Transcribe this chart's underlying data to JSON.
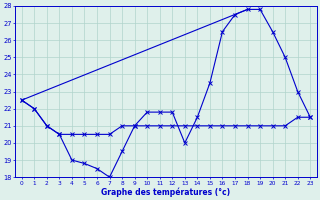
{
  "line1_x": [
    0,
    1,
    2,
    3,
    4,
    5,
    6,
    7,
    8,
    9,
    10,
    11,
    12,
    13,
    14,
    15,
    16,
    17,
    18,
    19,
    20,
    21,
    22,
    23
  ],
  "line1_y": [
    22.5,
    22.0,
    21.0,
    20.5,
    19.0,
    18.8,
    18.5,
    18.0,
    19.5,
    21.0,
    21.8,
    21.8,
    21.8,
    20.0,
    21.5,
    23.5,
    26.5,
    27.5,
    27.8,
    27.8,
    26.5,
    25.0,
    23.0,
    21.5
  ],
  "line2_x": [
    0,
    18
  ],
  "line2_y": [
    22.5,
    27.8
  ],
  "line3_x": [
    0,
    1,
    2,
    3,
    4,
    5,
    6,
    7,
    8,
    9,
    10,
    11,
    12,
    13,
    14,
    15,
    16,
    17,
    18,
    19,
    20,
    21,
    22,
    23
  ],
  "line3_y": [
    22.5,
    22.0,
    21.0,
    20.5,
    20.5,
    20.5,
    20.5,
    20.5,
    21.0,
    21.0,
    21.0,
    21.0,
    21.0,
    21.0,
    21.0,
    21.0,
    21.0,
    21.0,
    21.0,
    21.0,
    21.0,
    21.0,
    21.5,
    21.5
  ],
  "xlabel": "Graphe des températures (°c)",
  "ylim": [
    18,
    28
  ],
  "xlim": [
    -0.5,
    23.5
  ],
  "yticks": [
    18,
    19,
    20,
    21,
    22,
    23,
    24,
    25,
    26,
    27,
    28
  ],
  "xticks": [
    0,
    1,
    2,
    3,
    4,
    5,
    6,
    7,
    8,
    9,
    10,
    11,
    12,
    13,
    14,
    15,
    16,
    17,
    18,
    19,
    20,
    21,
    22,
    23
  ],
  "line_color": "#0000cd",
  "bg_color": "#dff0eb",
  "grid_color": "#b0d4cc"
}
